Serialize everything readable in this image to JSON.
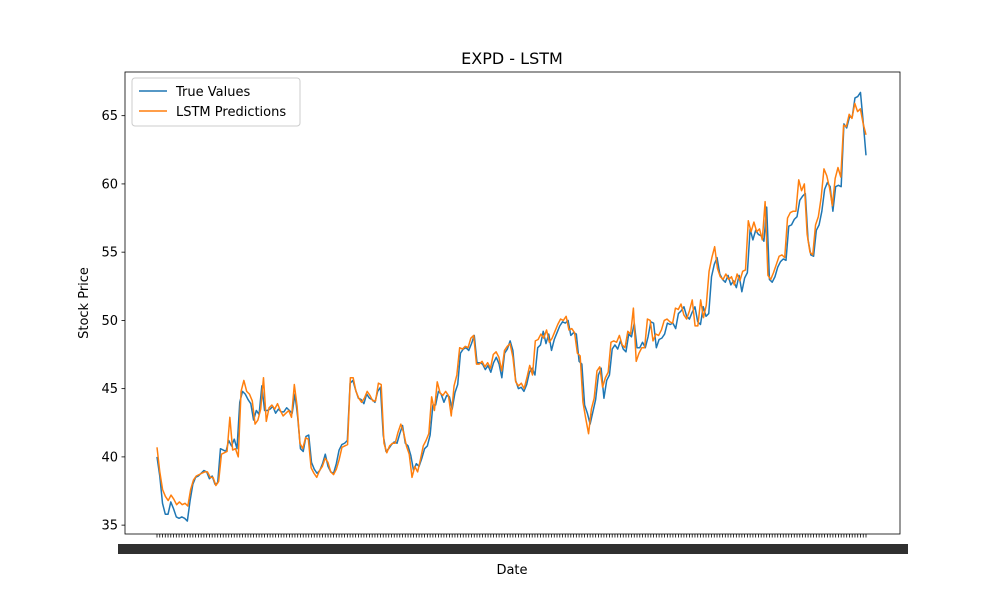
{
  "chart_data": {
    "type": "line",
    "title": "EXPD - LSTM",
    "xlabel": "Date",
    "ylabel": "Stock Price",
    "ylim": [
      34.35,
      68.2
    ],
    "yticks": [
      35,
      40,
      45,
      50,
      55,
      60,
      65
    ],
    "xtick_labels_note": "dense overlapping date tick labels (illegible)",
    "legend": {
      "placement": "top-left"
    },
    "grid": false,
    "colors": {
      "true_values": "#1f77b4",
      "predictions": "#ff7f0e"
    },
    "series": [
      {
        "name": "True Values",
        "values": [
          40.0,
          38.6,
          36.6,
          35.8,
          35.8,
          36.7,
          36.2,
          35.6,
          35.5,
          35.6,
          35.5,
          35.3,
          36.8,
          38.0,
          38.5,
          38.6,
          38.8,
          39.0,
          38.9,
          38.4,
          38.6,
          38.0,
          38.1,
          40.6,
          40.5,
          40.4,
          41.2,
          40.8,
          41.3,
          40.6,
          44.0,
          44.8,
          44.6,
          44.2,
          43.9,
          42.7,
          43.4,
          43.1,
          45.2,
          43.4,
          43.4,
          43.5,
          43.7,
          43.2,
          43.5,
          43.3,
          43.3,
          43.6,
          43.4,
          43.2,
          44.6,
          42.9,
          40.6,
          40.4,
          41.5,
          41.6,
          39.6,
          39.1,
          38.8,
          39.0,
          39.5,
          40.2,
          39.3,
          38.9,
          38.8,
          39.5,
          40.5,
          40.9,
          41.0,
          41.2,
          45.4,
          45.6,
          44.9,
          44.3,
          44.2,
          43.9,
          44.6,
          44.3,
          44.2,
          44.0,
          44.8,
          45.1,
          41.6,
          40.4,
          40.6,
          40.9,
          41.1,
          41.0,
          41.7,
          42.3,
          41.0,
          40.8,
          40.1,
          39.0,
          39.5,
          39.3,
          39.9,
          40.6,
          40.8,
          41.6,
          43.8,
          43.8,
          44.8,
          44.6,
          44.0,
          44.5,
          44.4,
          43.5,
          44.7,
          45.3,
          47.6,
          47.9,
          48.0,
          47.8,
          48.3,
          48.9,
          46.9,
          46.9,
          46.8,
          46.4,
          46.7,
          46.2,
          46.9,
          47.3,
          46.8,
          45.8,
          47.6,
          47.9,
          48.5,
          47.8,
          45.6,
          45.0,
          45.1,
          44.8,
          45.3,
          46.2,
          46.5,
          46.0,
          48.0,
          48.2,
          49.2,
          48.3,
          49.0,
          47.8,
          48.6,
          49.1,
          49.6,
          49.9,
          49.8,
          50.0,
          48.9,
          49.1,
          49.0,
          47.0,
          46.8,
          43.8,
          43.2,
          42.4,
          43.3,
          44.2,
          46.0,
          46.5,
          44.3,
          45.6,
          46.0,
          47.9,
          48.2,
          47.9,
          48.5,
          47.9,
          47.7,
          49.0,
          48.8,
          49.8,
          48.0,
          48.0,
          48.4,
          48.0,
          48.8,
          49.9,
          49.8,
          48.0,
          48.6,
          48.7,
          49.0,
          49.8,
          49.7,
          49.8,
          49.4,
          50.5,
          50.7,
          51.0,
          50.3,
          50.1,
          50.6,
          51.0,
          49.9,
          49.7,
          51.0,
          50.3,
          50.5,
          53.2,
          54.1,
          54.6,
          53.4,
          53.0,
          52.8,
          53.3,
          52.6,
          52.9,
          52.4,
          53.3,
          52.1,
          53.1,
          53.5,
          56.7,
          55.9,
          56.6,
          56.3,
          56.2,
          55.8,
          58.3,
          53.0,
          52.8,
          53.2,
          53.9,
          54.3,
          54.5,
          54.4,
          56.9,
          57.0,
          57.4,
          57.6,
          58.8,
          59.1,
          59.3,
          55.9,
          54.8,
          54.7,
          56.6,
          57.0,
          58.0,
          59.6,
          60.1,
          59.8,
          58.0,
          59.8,
          59.9,
          59.8,
          64.4,
          64.1,
          64.9,
          64.9,
          66.3,
          66.4,
          66.7,
          64.5,
          62.1
        ]
      },
      {
        "name": "LSTM Predictions",
        "values": [
          40.7,
          38.9,
          37.6,
          37.1,
          36.8,
          37.2,
          36.9,
          36.5,
          36.7,
          36.5,
          36.6,
          36.4,
          37.6,
          38.3,
          38.6,
          38.7,
          38.8,
          38.9,
          38.9,
          38.5,
          38.5,
          37.9,
          38.2,
          40.2,
          40.3,
          40.4,
          42.9,
          40.5,
          40.6,
          40.0,
          44.8,
          45.6,
          44.8,
          44.6,
          44.1,
          42.4,
          42.7,
          43.5,
          45.8,
          42.6,
          43.6,
          43.8,
          43.5,
          43.9,
          43.4,
          43.0,
          43.2,
          43.4,
          42.9,
          45.3,
          43.7,
          41.0,
          40.6,
          41.4,
          41.3,
          39.2,
          38.8,
          38.5,
          39.0,
          39.3,
          39.9,
          39.6,
          38.9,
          38.7,
          39.1,
          39.8,
          40.7,
          40.8,
          40.9,
          45.8,
          45.8,
          44.8,
          44.3,
          44.0,
          44.3,
          44.8,
          44.5,
          44.1,
          44.1,
          45.4,
          45.3,
          41.0,
          40.3,
          40.8,
          41.0,
          41.0,
          41.8,
          42.4,
          41.8,
          40.8,
          40.2,
          38.5,
          39.3,
          38.9,
          39.8,
          40.8,
          41.2,
          41.7,
          44.4,
          43.4,
          45.5,
          44.7,
          44.5,
          44.8,
          44.5,
          43.0,
          45.2,
          46.0,
          48.0,
          47.9,
          48.1,
          48.0,
          48.7,
          48.9,
          46.8,
          46.8,
          47.0,
          46.6,
          46.9,
          46.5,
          47.5,
          47.7,
          47.3,
          46.3,
          47.8,
          48.1,
          48.3,
          47.3,
          45.5,
          45.2,
          45.4,
          45.0,
          45.8,
          46.7,
          46.0,
          48.5,
          48.6,
          49.0,
          48.7,
          49.3,
          48.4,
          48.7,
          49.2,
          49.7,
          50.1,
          50.0,
          50.3,
          49.3,
          49.4,
          49.1,
          47.6,
          47.4,
          44.0,
          42.8,
          41.7,
          43.5,
          44.3,
          46.3,
          46.6,
          45.1,
          45.8,
          46.2,
          48.4,
          48.5,
          48.4,
          48.9,
          48.2,
          48.0,
          49.2,
          49.0,
          50.9,
          47.0,
          47.6,
          48.0,
          48.0,
          50.1,
          50.0,
          48.5,
          49.0,
          48.9,
          49.3,
          50.0,
          50.1,
          49.9,
          49.8,
          50.9,
          50.8,
          51.2,
          50.4,
          50.1,
          50.7,
          51.5,
          49.6,
          49.6,
          51.5,
          50.2,
          51.1,
          53.6,
          54.6,
          55.4,
          53.8,
          53.2,
          53.0,
          53.4,
          53.0,
          53.2,
          52.6,
          53.4,
          52.9,
          53.6,
          53.7,
          57.3,
          56.5,
          57.2,
          56.5,
          56.7,
          55.9,
          58.7,
          53.3,
          53.0,
          53.5,
          54.1,
          54.7,
          54.8,
          54.6,
          57.5,
          57.9,
          58.0,
          58.0,
          60.3,
          59.5,
          60.0,
          56.3,
          55.0,
          54.8,
          57.0,
          57.6,
          59.0,
          61.1,
          60.6,
          59.7,
          58.4,
          60.4,
          61.2,
          60.5,
          64.3,
          64.2,
          65.1,
          64.8,
          65.9,
          65.3,
          65.5,
          64.4,
          63.6
        ]
      }
    ]
  }
}
